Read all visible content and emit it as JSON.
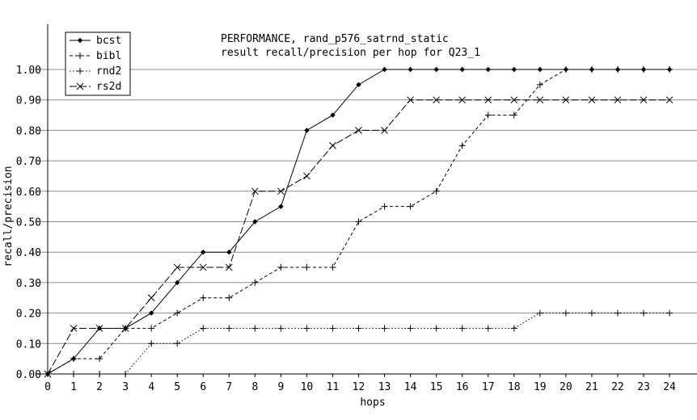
{
  "chart_data": {
    "type": "line",
    "title": "PERFORMANCE, rand_p576_satrnd_static",
    "subtitle": "result recall/precision per hop for Q23_1",
    "xlabel": "hops",
    "ylabel": "recall/precision",
    "xlim": [
      0,
      24
    ],
    "ylim": [
      0,
      1.0
    ],
    "x_ticks": [
      "0",
      "1",
      "2",
      "3",
      "4",
      "5",
      "6",
      "7",
      "8",
      "9",
      "10",
      "11",
      "12",
      "13",
      "14",
      "15",
      "16",
      "17",
      "18",
      "19",
      "20",
      "21",
      "22",
      "23",
      "24"
    ],
    "y_ticks": [
      "0.00",
      "0.10",
      "0.20",
      "0.30",
      "0.40",
      "0.50",
      "0.60",
      "0.70",
      "0.80",
      "0.90",
      "1.00"
    ],
    "grid": "horizontal",
    "legend_position": "top-left",
    "x": [
      0,
      1,
      2,
      3,
      4,
      5,
      6,
      7,
      8,
      9,
      10,
      11,
      12,
      13,
      14,
      15,
      16,
      17,
      18,
      19,
      20,
      21,
      22,
      23,
      24
    ],
    "series": [
      {
        "name": "bcst",
        "line_style": "solid",
        "marker": "diamond",
        "values": [
          0.0,
          0.05,
          0.15,
          0.15,
          0.2,
          0.3,
          0.4,
          0.4,
          0.5,
          0.55,
          0.8,
          0.85,
          0.95,
          1.0,
          1.0,
          1.0,
          1.0,
          1.0,
          1.0,
          1.0,
          1.0,
          1.0,
          1.0,
          1.0,
          1.0
        ]
      },
      {
        "name": "bibl",
        "line_style": "dashed",
        "marker": "plus",
        "values": [
          0.0,
          0.05,
          0.05,
          0.15,
          0.15,
          0.2,
          0.25,
          0.25,
          0.3,
          0.35,
          0.35,
          0.35,
          0.5,
          0.55,
          0.55,
          0.6,
          0.75,
          0.85,
          0.85,
          0.95,
          1.0,
          1.0,
          1.0,
          1.0,
          1.0
        ]
      },
      {
        "name": "rnd2",
        "line_style": "dotted",
        "marker": "plus",
        "values": [
          0.0,
          0.0,
          0.0,
          0.0,
          0.1,
          0.1,
          0.15,
          0.15,
          0.15,
          0.15,
          0.15,
          0.15,
          0.15,
          0.15,
          0.15,
          0.15,
          0.15,
          0.15,
          0.15,
          0.2,
          0.2,
          0.2,
          0.2,
          0.2,
          0.2
        ]
      },
      {
        "name": "rs2d",
        "line_style": "dash-long",
        "marker": "cross",
        "values": [
          0.0,
          0.15,
          0.15,
          0.15,
          0.25,
          0.35,
          0.35,
          0.35,
          0.6,
          0.6,
          0.65,
          0.75,
          0.8,
          0.8,
          0.9,
          0.9,
          0.9,
          0.9,
          0.9,
          0.9,
          0.9,
          0.9,
          0.9,
          0.9,
          0.9
        ]
      }
    ]
  }
}
